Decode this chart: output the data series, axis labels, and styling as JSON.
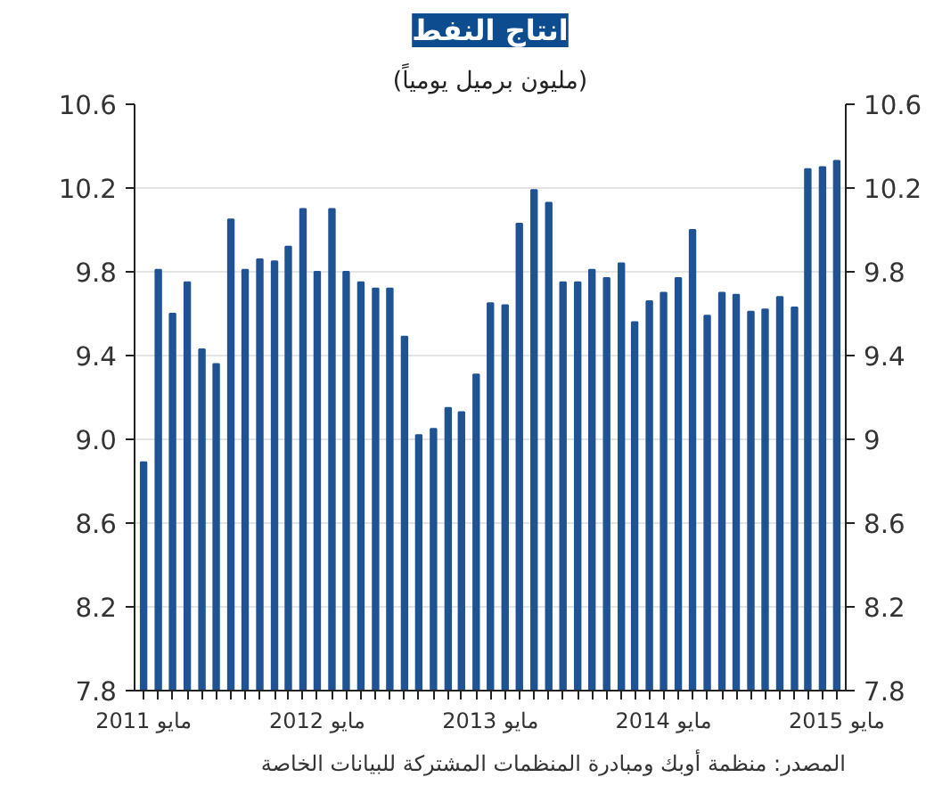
{
  "chart_data": {
    "type": "bar",
    "title": "انتاج النفط",
    "subtitle": "(مليون برميل يومياً)",
    "x": [
      "2011-05",
      "2011-06",
      "2011-07",
      "2011-08",
      "2011-09",
      "2011-10",
      "2011-11",
      "2011-12",
      "2012-01",
      "2012-02",
      "2012-03",
      "2012-04",
      "2012-05",
      "2012-06",
      "2012-07",
      "2012-08",
      "2012-09",
      "2012-10",
      "2012-11",
      "2012-12",
      "2013-01",
      "2013-02",
      "2013-03",
      "2013-04",
      "2013-05",
      "2013-06",
      "2013-07",
      "2013-08",
      "2013-09",
      "2013-10",
      "2013-11",
      "2013-12",
      "2014-01",
      "2014-02",
      "2014-03",
      "2014-04",
      "2014-05",
      "2014-06",
      "2014-07",
      "2014-08",
      "2014-09",
      "2014-10",
      "2014-11",
      "2014-12",
      "2015-01",
      "2015-02",
      "2015-03",
      "2015-04",
      "2015-05"
    ],
    "values": [
      8.89,
      9.81,
      9.6,
      9.75,
      9.43,
      9.36,
      10.05,
      9.81,
      9.86,
      9.85,
      9.92,
      10.1,
      9.8,
      10.1,
      9.8,
      9.75,
      9.72,
      9.72,
      9.49,
      9.02,
      9.05,
      9.15,
      9.13,
      9.31,
      9.65,
      9.64,
      10.03,
      10.19,
      10.13,
      9.75,
      9.75,
      9.81,
      9.77,
      9.84,
      9.56,
      9.66,
      9.7,
      9.77,
      10.0,
      9.59,
      9.7,
      9.69,
      9.61,
      9.62,
      9.68,
      9.63,
      10.29,
      10.3,
      10.33
    ],
    "color": "#1f5393",
    "xlim": [
      "2011-04-12",
      "2015-05-20"
    ],
    "xticks": [
      {
        "value": "2011-05",
        "label": "مايو 2011"
      },
      {
        "value": "2012-05",
        "label": "مايو 2012"
      },
      {
        "value": "2013-05",
        "label": "مايو 2013"
      },
      {
        "value": "2014-05",
        "label": "مايو 2014"
      },
      {
        "value": "2015-05",
        "label": "مايو 2015"
      }
    ],
    "ylim": [
      7.8,
      10.6
    ],
    "yticks": [
      {
        "value": 7.8,
        "label": "7.8"
      },
      {
        "value": 8.2,
        "label": "8.2"
      },
      {
        "value": 8.6,
        "label": "8.6"
      },
      {
        "value": 9.0,
        "label": "9.0"
      },
      {
        "value": 9.4,
        "label": "9.4"
      },
      {
        "value": 9.8,
        "label": "9.8"
      },
      {
        "value": 10.2,
        "label": "10.2"
      },
      {
        "value": 10.6,
        "label": "10.6"
      }
    ],
    "y2lim": [
      7.8,
      10.6
    ],
    "y2ticks": [
      7.8,
      8.2,
      8.6,
      9,
      9.4,
      9.8,
      10.2,
      10.6
    ],
    "grid": "y",
    "annotations": [
      "المصدر: منظمة أوبك ومبادرة المنظمات المشتركة للبيانات الخاصة"
    ]
  }
}
